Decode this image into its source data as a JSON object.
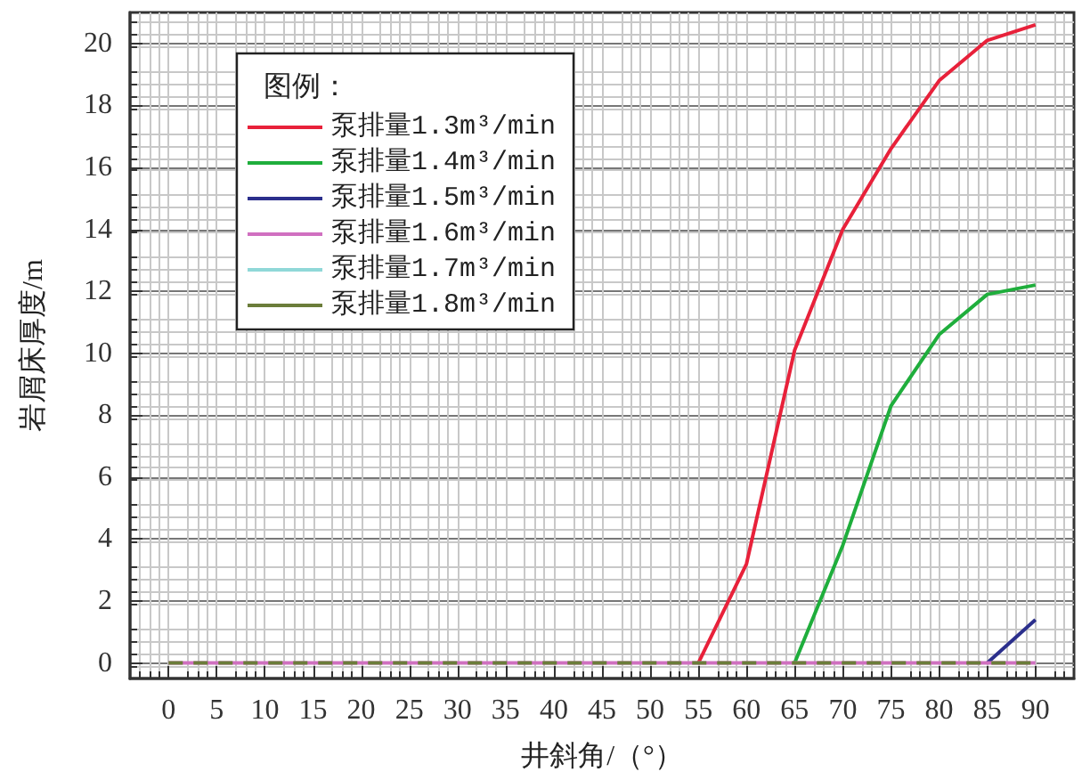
{
  "chart_data": {
    "type": "line",
    "xlabel": "井斜角/（°）",
    "ylabel": "岩屑床厚度/m",
    "legend_title": "图例：",
    "x": [
      0,
      5,
      10,
      15,
      20,
      25,
      30,
      35,
      40,
      45,
      50,
      55,
      60,
      65,
      70,
      75,
      80,
      85,
      90
    ],
    "series": [
      {
        "name": "泵排量1.3m³/min",
        "color": "#e8213a",
        "values": [
          null,
          null,
          null,
          null,
          null,
          null,
          null,
          null,
          null,
          null,
          null,
          0,
          3.2,
          10.1,
          14.0,
          16.6,
          18.8,
          20.1,
          20.6
        ]
      },
      {
        "name": "泵排量1.4m³/min",
        "color": "#1fae3c",
        "values": [
          null,
          null,
          null,
          null,
          null,
          null,
          null,
          null,
          null,
          null,
          null,
          null,
          null,
          0,
          3.8,
          8.3,
          10.6,
          11.9,
          12.2
        ]
      },
      {
        "name": "泵排量1.5m³/min",
        "color": "#2b2f8c",
        "values": [
          null,
          null,
          null,
          null,
          null,
          null,
          null,
          null,
          null,
          null,
          null,
          null,
          null,
          null,
          null,
          null,
          null,
          0,
          1.4
        ]
      },
      {
        "name": "泵排量1.6m³/min",
        "color": "#d070c0",
        "values": [
          0,
          0,
          0,
          0,
          0,
          0,
          0,
          0,
          0,
          0,
          0,
          0,
          0,
          0,
          0,
          0,
          0,
          0,
          0
        ]
      },
      {
        "name": "泵排量1.7m³/min",
        "color": "#90d8d8",
        "line_style": "dashed",
        "values": [
          null,
          null,
          null,
          null,
          null,
          null,
          null,
          null,
          null,
          null,
          null,
          null,
          null,
          null,
          null,
          null,
          null,
          null,
          null
        ]
      },
      {
        "name": "泵排量1.8m³/min",
        "color": "#6b7d3a",
        "line_style": "dashed",
        "values": [
          0,
          0,
          0,
          0,
          0,
          0,
          0,
          0,
          0,
          0,
          0,
          0,
          0,
          0,
          0,
          0,
          0,
          0,
          0
        ]
      }
    ],
    "xlim": [
      -4,
      94
    ],
    "xticks": [
      0,
      5,
      10,
      15,
      20,
      25,
      30,
      35,
      40,
      45,
      50,
      55,
      60,
      65,
      70,
      75,
      80,
      85,
      90
    ],
    "ylim": [
      -0.5,
      21
    ],
    "yticks": [
      0,
      2,
      4,
      6,
      8,
      10,
      12,
      14,
      16,
      18,
      20
    ],
    "grid": true,
    "legend": "top left",
    "marker": "none",
    "line_style": "solid"
  }
}
